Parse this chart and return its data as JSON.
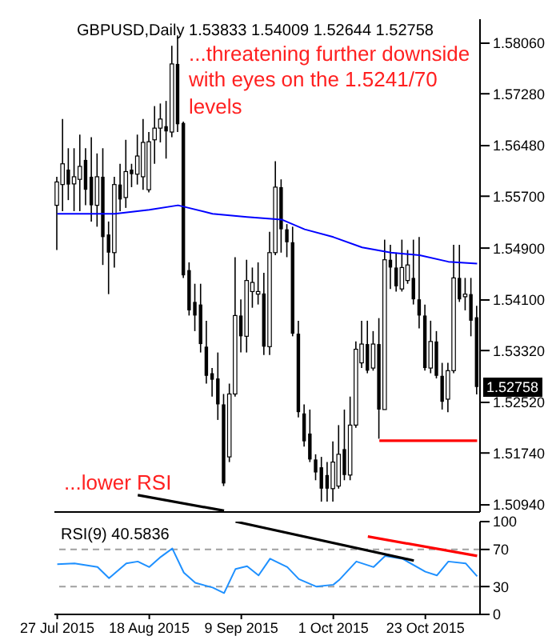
{
  "chart_data": [
    {
      "type": "candlestick",
      "title": "GBPUSD,Daily 1.53833 1.54009 1.52644 1.52758",
      "annotations": [
        "...threatening further downside with eyes on the 1.5241/70 levels",
        "...lower RSI",
        {
          "text": "1.52758",
          "y": 1.52758
        }
      ],
      "categories": [
        null,
        null,
        null,
        null,
        null,
        null,
        null,
        null,
        null,
        null,
        null,
        null,
        null,
        null,
        null,
        null,
        null,
        null,
        null,
        null,
        null,
        null,
        null,
        null,
        null,
        null,
        null,
        null,
        null,
        null,
        null,
        null,
        null,
        null,
        null,
        null,
        null,
        null,
        null,
        null,
        null,
        null,
        null,
        null,
        null,
        null,
        null,
        null,
        null,
        null,
        null,
        null,
        null,
        null,
        null,
        null,
        null,
        null,
        null,
        null,
        null,
        null,
        null,
        null,
        null,
        null,
        null,
        null,
        null,
        null,
        null,
        null,
        null,
        null
      ],
      "ohlc": [
        [
          1.5556,
          1.56,
          1.5487,
          1.5592
        ],
        [
          1.5588,
          1.5689,
          1.5547,
          1.562
        ],
        [
          1.5611,
          1.5644,
          1.5564,
          1.5588
        ],
        [
          1.5589,
          1.5644,
          1.5547,
          1.56
        ],
        [
          1.5596,
          1.5665,
          1.5547,
          1.5616
        ],
        [
          1.5626,
          1.5644,
          1.5556,
          1.558
        ],
        [
          1.56,
          1.5661,
          1.5531,
          1.5556
        ],
        [
          1.5556,
          1.5636,
          1.5523,
          1.56
        ],
        [
          1.56,
          1.5644,
          1.5464,
          1.5507
        ],
        [
          1.5511,
          1.5531,
          1.5419,
          1.5483
        ],
        [
          1.5483,
          1.56,
          1.546,
          1.5588
        ],
        [
          1.5588,
          1.562,
          1.5547,
          1.5565
        ],
        [
          1.5568,
          1.5657,
          1.5552,
          1.5608
        ],
        [
          1.5611,
          1.562,
          1.5584,
          1.5604
        ],
        [
          1.5604,
          1.5665,
          1.5588,
          1.5632
        ],
        [
          1.56,
          1.5689,
          1.558,
          1.5653
        ],
        [
          1.558,
          1.5669,
          1.5576,
          1.5654
        ],
        [
          1.5657,
          1.5709,
          1.562,
          1.5675
        ],
        [
          1.5675,
          1.5713,
          1.5653,
          1.5689
        ],
        [
          1.5678,
          1.5717,
          1.5628,
          1.567
        ],
        [
          1.5669,
          1.5802,
          1.5661,
          1.5774
        ],
        [
          1.5774,
          1.5818,
          1.5669,
          1.5681
        ],
        [
          1.5683,
          1.5685,
          1.5444,
          1.5448
        ],
        [
          1.5456,
          1.5468,
          1.5386,
          1.5394
        ],
        [
          1.5407,
          1.5435,
          1.5362,
          1.5386
        ],
        [
          1.5403,
          1.5435,
          1.5329,
          1.5342
        ],
        [
          1.5338,
          1.5378,
          1.5281,
          1.5293
        ],
        [
          1.5297,
          1.5305,
          1.5261,
          1.5287
        ],
        [
          1.5289,
          1.5329,
          1.5225,
          1.5249
        ],
        [
          1.5249,
          1.5265,
          1.5123,
          1.5127
        ],
        [
          1.5168,
          1.5281,
          1.516,
          1.5265
        ],
        [
          1.5265,
          1.5476,
          1.5261,
          1.5386
        ],
        [
          1.5386,
          1.5411,
          1.5329,
          1.5354
        ],
        [
          1.5354,
          1.5472,
          1.5329,
          1.544
        ],
        [
          1.5423,
          1.546,
          1.5398,
          1.5437
        ],
        [
          1.5419,
          1.5468,
          1.5403,
          1.5423
        ],
        [
          1.542,
          1.5452,
          1.5325,
          1.5338
        ],
        [
          1.5338,
          1.5515,
          1.5325,
          1.5483
        ],
        [
          1.5483,
          1.5624,
          1.5479,
          1.5584
        ],
        [
          1.5584,
          1.5596,
          1.5483,
          1.5519
        ],
        [
          1.5519,
          1.5527,
          1.5476,
          1.5499
        ],
        [
          1.5499,
          1.5523,
          1.5354,
          1.5358
        ],
        [
          1.5358,
          1.5378,
          1.5229,
          1.5237
        ],
        [
          1.5235,
          1.5249,
          1.5184,
          1.5192
        ],
        [
          1.5204,
          1.5241,
          1.516,
          1.5164
        ],
        [
          1.5164,
          1.5172,
          1.5132,
          1.5144
        ],
        [
          1.5152,
          1.5168,
          1.5099,
          1.5119
        ],
        [
          1.514,
          1.516,
          1.5099,
          1.5119
        ],
        [
          1.5119,
          1.5192,
          1.5099,
          1.516
        ],
        [
          1.5123,
          1.5217,
          1.5119,
          1.5172
        ],
        [
          1.518,
          1.5241,
          1.5132,
          1.514
        ],
        [
          1.514,
          1.5261,
          1.5132,
          1.5217
        ],
        [
          1.5217,
          1.5346,
          1.5213,
          1.5334
        ],
        [
          1.5313,
          1.5378,
          1.5305,
          1.5342
        ],
        [
          1.5342,
          1.5378,
          1.5297,
          1.5301
        ],
        [
          1.5305,
          1.5362,
          1.5301,
          1.5342
        ],
        [
          1.5342,
          1.5382,
          1.5196,
          1.5241
        ],
        [
          1.5241,
          1.5503,
          1.5241,
          1.5472
        ],
        [
          1.5472,
          1.5495,
          1.5427,
          1.546
        ],
        [
          1.546,
          1.5483,
          1.5423,
          1.5431
        ],
        [
          1.5427,
          1.5503,
          1.5423,
          1.546
        ],
        [
          1.544,
          1.5487,
          1.5435,
          1.5464
        ],
        [
          1.5444,
          1.5503,
          1.5403,
          1.5411
        ],
        [
          1.5411,
          1.5507,
          1.5366,
          1.5386
        ],
        [
          1.5386,
          1.5403,
          1.5301,
          1.5305
        ],
        [
          1.5305,
          1.5378,
          1.5297,
          1.5346
        ],
        [
          1.5346,
          1.5362,
          1.5289,
          1.5293
        ],
        [
          1.5293,
          1.5313,
          1.5241,
          1.5253
        ],
        [
          1.5257,
          1.5313,
          1.5237,
          1.5301
        ],
        [
          1.5301,
          1.5495,
          1.5297,
          1.5444
        ],
        [
          1.5444,
          1.5495,
          1.5407,
          1.5411
        ],
        [
          1.5415,
          1.5444,
          1.5394,
          1.5419
        ],
        [
          1.5419,
          1.5444,
          1.5354,
          1.5378
        ],
        [
          1.53833,
          1.54009,
          1.52644,
          1.52758
        ]
      ],
      "series": [
        {
          "type": "line",
          "color": "#0000ff",
          "values": [
            1.5543,
            null,
            null,
            null,
            null,
            null,
            null,
            null,
            null,
            null,
            1.5543,
            null,
            null,
            null,
            null,
            null,
            1.5549,
            null,
            null,
            null,
            null,
            1.5556,
            null,
            null,
            null,
            null,
            null,
            1.5543,
            null,
            null,
            null,
            null,
            null,
            1.5538,
            null,
            null,
            null,
            null,
            null,
            1.5534,
            null,
            null,
            null,
            1.5519,
            null,
            null,
            null,
            null,
            1.5507,
            null,
            null,
            null,
            null,
            1.5491,
            null,
            null,
            null,
            null,
            1.5483,
            null,
            null,
            null,
            null,
            1.5479,
            null,
            null,
            null,
            null,
            1.5469,
            null,
            null,
            null,
            null,
            1.5466
          ]
        },
        {
          "type": "line",
          "color": "#000000",
          "values": [
            null,
            null,
            null,
            null,
            null,
            null,
            null,
            null,
            null,
            null,
            null,
            null,
            null,
            null,
            1.5109,
            null,
            null,
            null,
            null,
            null,
            null,
            null,
            null,
            null,
            null,
            null,
            null,
            null,
            null,
            1.5085,
            null,
            null,
            null,
            null,
            null,
            null,
            null,
            null,
            null,
            null,
            null,
            null,
            null,
            null,
            null,
            null,
            null,
            null,
            null,
            null,
            null,
            null,
            null,
            null,
            null,
            null,
            null,
            null,
            null,
            null,
            null,
            null,
            null,
            null,
            null,
            null,
            null,
            null,
            null,
            null,
            null,
            null,
            null,
            null
          ]
        },
        {
          "type": "line",
          "color": "#ff0000",
          "values": [
            null,
            null,
            null,
            null,
            null,
            null,
            null,
            null,
            null,
            null,
            null,
            null,
            null,
            null,
            null,
            null,
            null,
            null,
            null,
            null,
            null,
            null,
            null,
            null,
            null,
            null,
            null,
            null,
            null,
            null,
            null,
            null,
            null,
            null,
            null,
            null,
            null,
            null,
            null,
            null,
            null,
            null,
            null,
            null,
            null,
            null,
            null,
            null,
            null,
            null,
            null,
            null,
            null,
            null,
            null,
            null,
            1.5193,
            null,
            null,
            null,
            null,
            null,
            null,
            null,
            null,
            null,
            null,
            null,
            null,
            null,
            null,
            null,
            null,
            1.5193
          ]
        }
      ],
      "ylim": [
        1.5083,
        1.5843
      ],
      "yticks": [
        {
          "value": 1.5094,
          "label": "1.50940"
        },
        {
          "value": 1.5174,
          "label": "1.51740"
        },
        {
          "value": 1.5252,
          "label": "1.52520"
        },
        {
          "value": 1.5332,
          "label": "1.53320"
        },
        {
          "value": 1.541,
          "label": "1.54100"
        },
        {
          "value": 1.549,
          "label": "1.54900"
        },
        {
          "value": 1.557,
          "label": "1.55700"
        },
        {
          "value": 1.5648,
          "label": "1.56480"
        },
        {
          "value": 1.5728,
          "label": "1.57280"
        },
        {
          "value": 1.5806,
          "label": "1.58060"
        }
      ],
      "tick_labels": "y",
      "grid": false,
      "legend": false
    },
    {
      "type": "line",
      "annotations": [
        "RSI(9) 40.5836"
      ],
      "categories": [
        "27 Jul 2015",
        null,
        null,
        null,
        null,
        null,
        null,
        null,
        null,
        null,
        null,
        null,
        null,
        null,
        null,
        null,
        "18 Aug 2015",
        null,
        null,
        null,
        null,
        null,
        null,
        null,
        null,
        null,
        null,
        null,
        null,
        null,
        null,
        null,
        "9 Sep 2015",
        null,
        null,
        null,
        null,
        null,
        null,
        null,
        null,
        null,
        null,
        null,
        null,
        null,
        null,
        null,
        "1 Oct 2015",
        null,
        null,
        null,
        null,
        null,
        null,
        null,
        null,
        null,
        null,
        null,
        null,
        null,
        null,
        null,
        "23 Oct 2015",
        null,
        null,
        null,
        null,
        null,
        null,
        null,
        null,
        null
      ],
      "series": [
        {
          "type": "line",
          "color": "#1e90ff",
          "values": [
            54,
            null,
            null,
            55,
            null,
            null,
            null,
            51,
            null,
            39,
            null,
            null,
            55,
            null,
            57,
            null,
            51,
            null,
            62,
            null,
            71,
            null,
            45,
            null,
            34,
            null,
            null,
            29,
            null,
            23,
            null,
            49,
            null,
            52,
            null,
            42,
            null,
            60,
            null,
            null,
            51,
            null,
            38,
            null,
            null,
            30,
            null,
            null,
            32,
            37,
            null,
            null,
            57,
            null,
            null,
            51,
            null,
            63,
            null,
            null,
            60,
            null,
            null,
            null,
            46,
            null,
            42,
            null,
            57,
            null,
            null,
            55,
            null,
            41
          ]
        },
        {
          "type": "line",
          "color": "#000000",
          "values": [
            null,
            null,
            null,
            null,
            null,
            null,
            null,
            null,
            null,
            null,
            null,
            null,
            null,
            null,
            null,
            null,
            null,
            null,
            null,
            null,
            null,
            null,
            null,
            null,
            null,
            null,
            null,
            null,
            null,
            null,
            null,
            100,
            null,
            null,
            null,
            null,
            null,
            null,
            null,
            null,
            null,
            null,
            null,
            null,
            null,
            null,
            null,
            null,
            null,
            null,
            null,
            null,
            null,
            null,
            null,
            null,
            null,
            null,
            null,
            null,
            null,
            null,
            58,
            null,
            null,
            null,
            null,
            null,
            null,
            null,
            null,
            null,
            null,
            null
          ]
        },
        {
          "type": "line",
          "color": "#ff0000",
          "values": [
            null,
            null,
            null,
            null,
            null,
            null,
            null,
            null,
            null,
            null,
            null,
            null,
            null,
            null,
            null,
            null,
            null,
            null,
            null,
            null,
            null,
            null,
            null,
            null,
            null,
            null,
            null,
            null,
            null,
            null,
            null,
            null,
            null,
            null,
            null,
            null,
            null,
            null,
            null,
            null,
            null,
            null,
            null,
            null,
            null,
            null,
            null,
            null,
            null,
            null,
            null,
            null,
            null,
            null,
            84,
            null,
            null,
            null,
            null,
            null,
            null,
            null,
            null,
            null,
            null,
            null,
            null,
            null,
            null,
            null,
            null,
            null,
            null,
            63
          ]
        }
      ],
      "ylim": [
        0,
        100
      ],
      "yticks": [
        0,
        30,
        70,
        100
      ],
      "ref_lines": [
        {
          "axis": "y",
          "value": 70,
          "color": "#a0a0a0",
          "line_style": "dashed"
        },
        {
          "axis": "y",
          "value": 30,
          "color": "#a0a0a0",
          "line_style": "dashed"
        }
      ],
      "grid": false,
      "legend": false
    }
  ]
}
